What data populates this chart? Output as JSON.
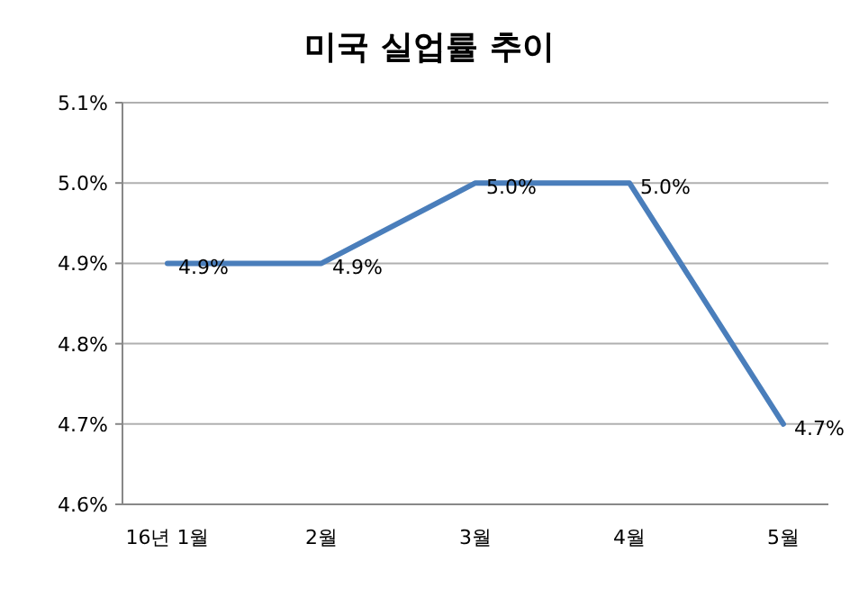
{
  "chart_data": {
    "type": "line",
    "title": "미국 실업률 추이",
    "categories": [
      "16년 1월",
      "2월",
      "3월",
      "4월",
      "5월"
    ],
    "series": [
      {
        "color": "#4a7ebb",
        "values": [
          4.9,
          4.9,
          5.0,
          5.0,
          4.7
        ],
        "value_labels": [
          "4.9%",
          "4.9%",
          "5.0%",
          "5.0%",
          "4.7%"
        ]
      }
    ],
    "ylim": [
      4.6,
      5.1
    ],
    "yticks": [
      {
        "value": 4.6,
        "label": "4.6%"
      },
      {
        "value": 4.7,
        "label": "4.7%"
      },
      {
        "value": 4.8,
        "label": "4.8%"
      },
      {
        "value": 4.9,
        "label": "4.9%"
      },
      {
        "value": 5.0,
        "label": "5.0%"
      },
      {
        "value": 5.1,
        "label": "5.1%"
      }
    ],
    "grid": "y",
    "marker": "none",
    "line_style": "solid"
  }
}
